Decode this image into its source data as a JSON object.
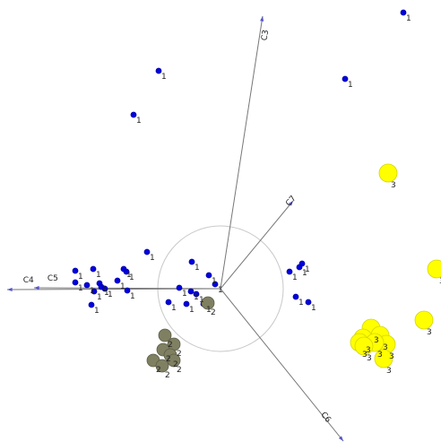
{
  "chart_data": {
    "type": "scatter",
    "xlim": [
      -2.46,
      2.46
    ],
    "ylim": [
      -1.71,
      3.22
    ],
    "circle_radius": 0.7,
    "vectors": [
      {
        "name": "C3",
        "x": 0.47,
        "y": 3.04
      },
      {
        "name": "C7",
        "x": 0.81,
        "y": 0.98
      },
      {
        "name": "C4",
        "x": -2.38,
        "y": -0.01
      },
      {
        "name": "C5",
        "x": -2.08,
        "y": 0.01
      },
      {
        "name": "C6",
        "x": 1.37,
        "y": -1.7
      }
    ],
    "series": [
      {
        "name": "1",
        "color": "#0000dd",
        "x": [
          2.04,
          -0.69,
          1.39,
          -0.97,
          -0.82,
          -0.32,
          -0.13,
          -0.06,
          -1.62,
          -1.42,
          -1.08,
          -1.05,
          -1.15,
          -1.62,
          -1.49,
          -1.35,
          -1.33,
          -1.29,
          -1.41,
          -1.04,
          -1.44,
          -0.46,
          -0.33,
          -0.27,
          -0.38,
          -0.58,
          -0.19,
          0.91,
          0.88,
          0.77,
          0.84,
          0.98
        ],
        "y": [
          3.08,
          2.43,
          2.34,
          1.94,
          0.41,
          0.3,
          0.15,
          0.05,
          0.2,
          0.22,
          0.22,
          0.19,
          0.09,
          0.07,
          0.04,
          0.06,
          0.02,
          0,
          -0.03,
          -0.02,
          -0.18,
          0.01,
          -0.03,
          -0.06,
          -0.17,
          -0.15,
          -0.17,
          0.28,
          0.24,
          0.19,
          -0.09,
          -0.15
        ]
      },
      {
        "name": "2",
        "color": "#7f7f62",
        "x": [
          -0.14,
          -0.62,
          -0.52,
          -0.64,
          -0.56,
          -0.52,
          -0.75,
          -0.65
        ],
        "y": [
          -0.16,
          -0.52,
          -0.62,
          -0.68,
          -0.74,
          -0.8,
          -0.8,
          -0.86
        ]
      },
      {
        "name": "3",
        "color": "#ffff00",
        "x": [
          1.87,
          2.41,
          2.27,
          1.68,
          1.59,
          1.78,
          1.55,
          1.85,
          1.72,
          1.6,
          1.82
        ],
        "y": [
          1.29,
          0.22,
          -0.35,
          -0.44,
          -0.55,
          -0.52,
          -0.6,
          -0.62,
          -0.6,
          -0.64,
          -0.78
        ]
      }
    ]
  }
}
